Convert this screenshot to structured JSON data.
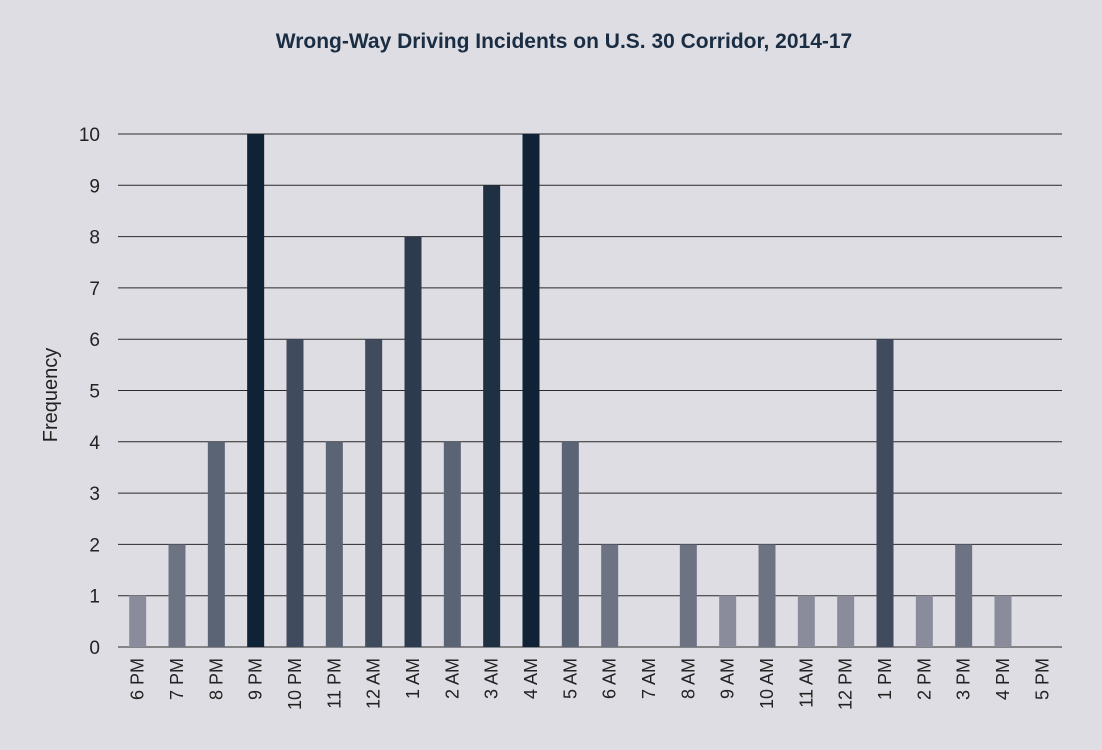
{
  "chart_data": {
    "type": "bar",
    "title": "Wrong-Way Driving Incidents on U.S. 30 Corridor, 2014-17",
    "xlabel": "",
    "ylabel": "Frequency",
    "ylim": [
      0,
      10
    ],
    "yticks": [
      "0",
      "1",
      "2",
      "3",
      "4",
      "5",
      "6",
      "7",
      "8",
      "9",
      "10"
    ],
    "grid": true,
    "categories": [
      "6 PM",
      "7 PM",
      "8 PM",
      "9 PM",
      "10 PM",
      "11 PM",
      "12 AM",
      "1 AM",
      "2 AM",
      "3 AM",
      "4 AM",
      "5 AM",
      "6 AM",
      "7 AM",
      "8 AM",
      "9 AM",
      "10 AM",
      "11 AM",
      "12 PM",
      "1 PM",
      "2 PM",
      "3 PM",
      "4 PM",
      "5 PM"
    ],
    "values": [
      1,
      2,
      4,
      10,
      6,
      4,
      6,
      8,
      4,
      9,
      10,
      4,
      2,
      0,
      2,
      1,
      2,
      1,
      1,
      6,
      1,
      2,
      1,
      0
    ],
    "colors": {
      "1": "#8a8c9c",
      "2": "#6e7384",
      "4": "#5b6475",
      "6": "#414b5e",
      "8": "#2e3b4f",
      "9": "#1f3042",
      "10": "#0f2236"
    }
  }
}
